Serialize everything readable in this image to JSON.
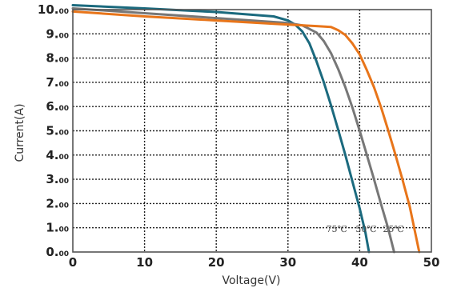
{
  "chart_data": {
    "type": "line",
    "xlabel": "Voltage(V)",
    "ylabel": "Current(A)",
    "xlim": [
      0,
      50
    ],
    "ylim": [
      0,
      10
    ],
    "grid": true,
    "x_ticks": [
      {
        "value": 0,
        "label": "0"
      },
      {
        "value": 10,
        "label": "10"
      },
      {
        "value": 20,
        "label": "20"
      },
      {
        "value": 30,
        "label": "30"
      },
      {
        "value": 40,
        "label": "40"
      },
      {
        "value": 50,
        "label": "50"
      }
    ],
    "y_ticks": [
      {
        "value": 0,
        "main": "0.",
        "sub": "00"
      },
      {
        "value": 1,
        "main": "1.",
        "sub": "00"
      },
      {
        "value": 2,
        "main": "2.",
        "sub": "00"
      },
      {
        "value": 3,
        "main": "3.",
        "sub": "00"
      },
      {
        "value": 4,
        "main": "4.",
        "sub": "00"
      },
      {
        "value": 5,
        "main": "5.",
        "sub": "00"
      },
      {
        "value": 6,
        "main": "6.",
        "sub": "00"
      },
      {
        "value": 7,
        "main": "7.",
        "sub": "00"
      },
      {
        "value": 8,
        "main": "8.",
        "sub": "00"
      },
      {
        "value": 9,
        "main": "9.",
        "sub": "00"
      },
      {
        "value": 10,
        "main": "10.",
        "sub": "00"
      }
    ],
    "series": [
      {
        "name": "75℃",
        "color": "#1b6a7e",
        "label_x": 36.8,
        "points": [
          [
            0,
            10.18
          ],
          [
            10,
            10.05
          ],
          [
            20,
            9.9
          ],
          [
            28,
            9.72
          ],
          [
            30,
            9.55
          ],
          [
            31,
            9.38
          ],
          [
            32,
            9.1
          ],
          [
            33,
            8.6
          ],
          [
            34,
            7.85
          ],
          [
            35,
            7.0
          ],
          [
            36,
            6.05
          ],
          [
            37,
            5.05
          ],
          [
            38,
            4.0
          ],
          [
            39,
            2.9
          ],
          [
            40,
            1.8
          ],
          [
            40.8,
            0.8
          ],
          [
            41.3,
            0
          ]
        ]
      },
      {
        "name": "50℃",
        "color": "#777777",
        "label_x": 40.9,
        "points": [
          [
            0,
            10.05
          ],
          [
            10,
            9.85
          ],
          [
            20,
            9.65
          ],
          [
            30,
            9.45
          ],
          [
            32,
            9.35
          ],
          [
            34,
            9.05
          ],
          [
            35,
            8.7
          ],
          [
            36,
            8.2
          ],
          [
            37,
            7.55
          ],
          [
            38,
            6.8
          ],
          [
            39,
            5.95
          ],
          [
            40,
            5.0
          ],
          [
            41,
            4.0
          ],
          [
            42,
            3.0
          ],
          [
            43,
            1.95
          ],
          [
            44,
            0.95
          ],
          [
            44.8,
            0
          ]
        ]
      },
      {
        "name": "25℃",
        "color": "#e8751a",
        "label_x": 44.7,
        "points": [
          [
            0,
            9.92
          ],
          [
            10,
            9.72
          ],
          [
            20,
            9.55
          ],
          [
            30,
            9.38
          ],
          [
            34,
            9.32
          ],
          [
            36,
            9.28
          ],
          [
            37,
            9.15
          ],
          [
            38,
            8.95
          ],
          [
            39,
            8.6
          ],
          [
            40,
            8.15
          ],
          [
            41,
            7.5
          ],
          [
            42,
            6.8
          ],
          [
            43,
            5.95
          ],
          [
            44,
            5.0
          ],
          [
            45,
            4.0
          ],
          [
            46,
            2.95
          ],
          [
            47,
            1.85
          ],
          [
            48.3,
            0
          ]
        ]
      }
    ]
  }
}
